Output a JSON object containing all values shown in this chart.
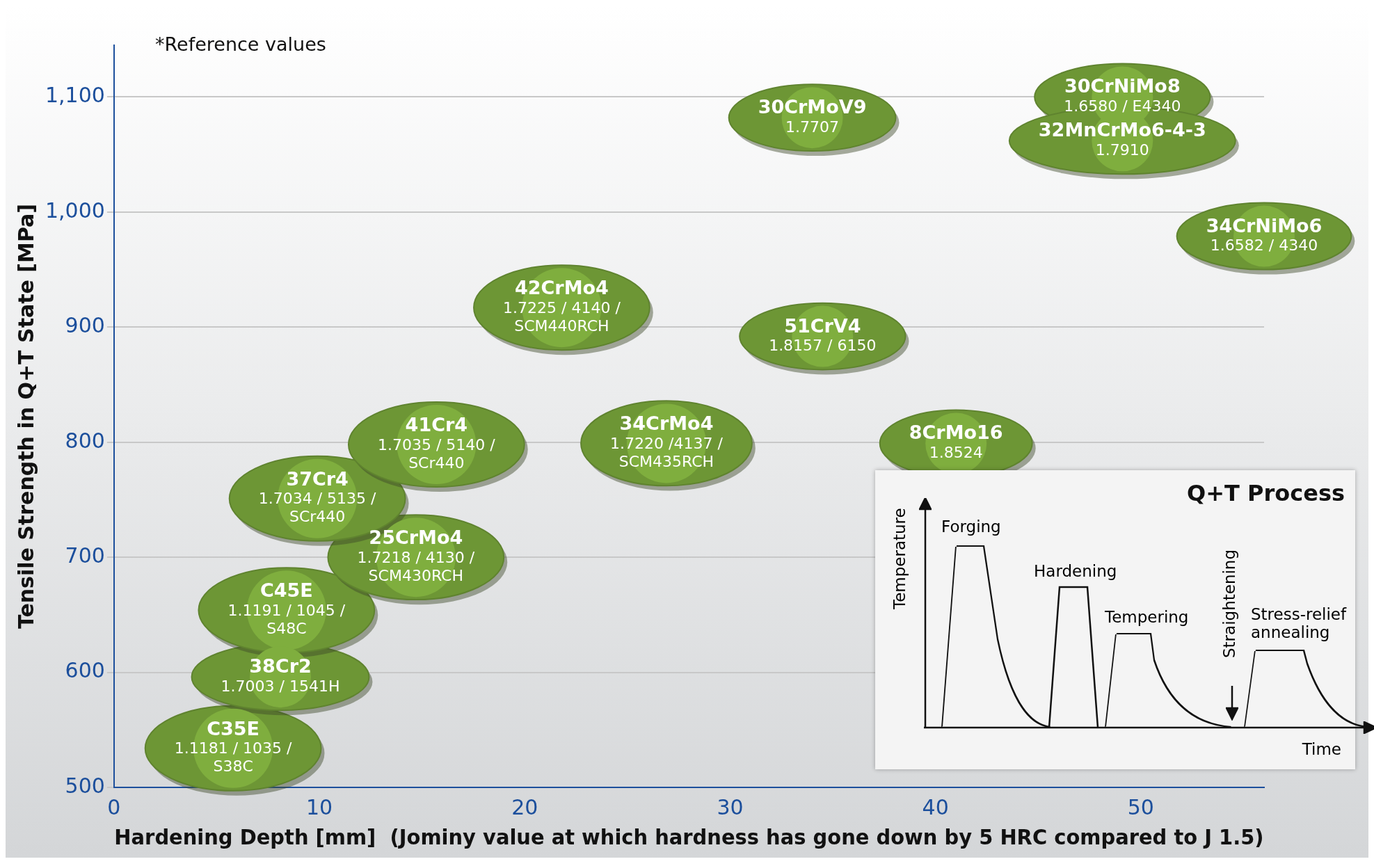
{
  "chart_data": {
    "type": "scatter",
    "xlabel": "Hardening Depth [mm]  (Jominy value at which hardness has gone down by 5 HRC compared to J 1.5)",
    "ylabel": "Tensile Strength in Q+T State [MPa]",
    "xlim": [
      0,
      56
    ],
    "ylim": [
      500,
      1145
    ],
    "xticks": [
      0,
      10,
      20,
      30,
      40,
      50
    ],
    "yticks": [
      500,
      600,
      700,
      800,
      900,
      {
        "value": 1000,
        "label": "1,000"
      },
      {
        "value": 1100,
        "label": "1,100"
      }
    ],
    "grid": "y",
    "legend": false,
    "marker": "circle",
    "annotations": [
      "*Reference values",
      "Q+T Process",
      "Temperature",
      "Time",
      "Forging",
      "Hardening",
      "Tempering",
      "Straightening",
      "Stress-relief annealing",
      {
        "text": "1.1181 / 1035 / S38C",
        "x": 5.8,
        "y": 534
      },
      {
        "text": "1.7003 / 1541H",
        "x": 8.1,
        "y": 596
      },
      {
        "text": "1.1191 / 1045 / S48C",
        "x": 8.4,
        "y": 654
      },
      {
        "text": "1.7218 / 4130 / SCM430RCH",
        "x": 14.7,
        "y": 700
      },
      {
        "text": "1.7034 / 5135 / SCr440",
        "x": 9.9,
        "y": 751
      },
      {
        "text": "1.7035 / 5140 / SCr440",
        "x": 15.7,
        "y": 798
      },
      {
        "text": "1.7220 /4137 / SCM435RCH",
        "x": 26.9,
        "y": 799
      },
      {
        "text": "1.7225 / 4140 / SCM440RCH",
        "x": 21.8,
        "y": 917
      },
      {
        "text": "1.8157 / 6150",
        "x": 34.5,
        "y": 892
      },
      {
        "text": "1.8524",
        "x": 41.0,
        "y": 799
      },
      {
        "text": "1.7707",
        "x": 34.0,
        "y": 1082
      },
      {
        "text": "1.6580 / E4340",
        "x": 49.1,
        "y": 1100
      },
      {
        "text": "1.7910",
        "x": 49.1,
        "y": 1062
      },
      {
        "text": "1.6582 / 4340",
        "x": 56.0,
        "y": 979
      }
    ],
    "series": [
      {
        "name": "C35E",
        "color": "#7fae3e",
        "x": [
          5.8
        ],
        "values": [
          534
        ]
      },
      {
        "name": "38Cr2",
        "color": "#7fae3e",
        "x": [
          8.1
        ],
        "values": [
          596
        ]
      },
      {
        "name": "C45E",
        "color": "#7fae3e",
        "x": [
          8.4
        ],
        "values": [
          654
        ]
      },
      {
        "name": "25CrMo4",
        "color": "#7fae3e",
        "x": [
          14.7
        ],
        "values": [
          700
        ]
      },
      {
        "name": "37Cr4",
        "color": "#7fae3e",
        "x": [
          9.9
        ],
        "values": [
          751
        ]
      },
      {
        "name": "41Cr4",
        "color": "#7fae3e",
        "x": [
          15.7
        ],
        "values": [
          798
        ]
      },
      {
        "name": "34CrMo4",
        "color": "#7fae3e",
        "x": [
          26.9
        ],
        "values": [
          799
        ]
      },
      {
        "name": "42CrMo4",
        "color": "#7fae3e",
        "x": [
          21.8
        ],
        "values": [
          917
        ]
      },
      {
        "name": "51CrV4",
        "color": "#7fae3e",
        "x": [
          34.5
        ],
        "values": [
          892
        ]
      },
      {
        "name": "8CrMo16",
        "color": "#7fae3e",
        "x": [
          41.0
        ],
        "values": [
          799
        ]
      },
      {
        "name": "30CrMoV9",
        "color": "#7fae3e",
        "x": [
          34.0
        ],
        "values": [
          1082
        ]
      },
      {
        "name": "30CrNiMo8",
        "color": "#7fae3e",
        "x": [
          49.1
        ],
        "values": [
          1100
        ]
      },
      {
        "name": "32MnCrMo6-4-3",
        "color": "#7fae3e",
        "x": [
          49.1
        ],
        "values": [
          1062
        ]
      },
      {
        "name": "34CrNiMo6",
        "color": "#7fae3e",
        "x": [
          56.0
        ],
        "values": [
          979
        ]
      }
    ]
  }
}
